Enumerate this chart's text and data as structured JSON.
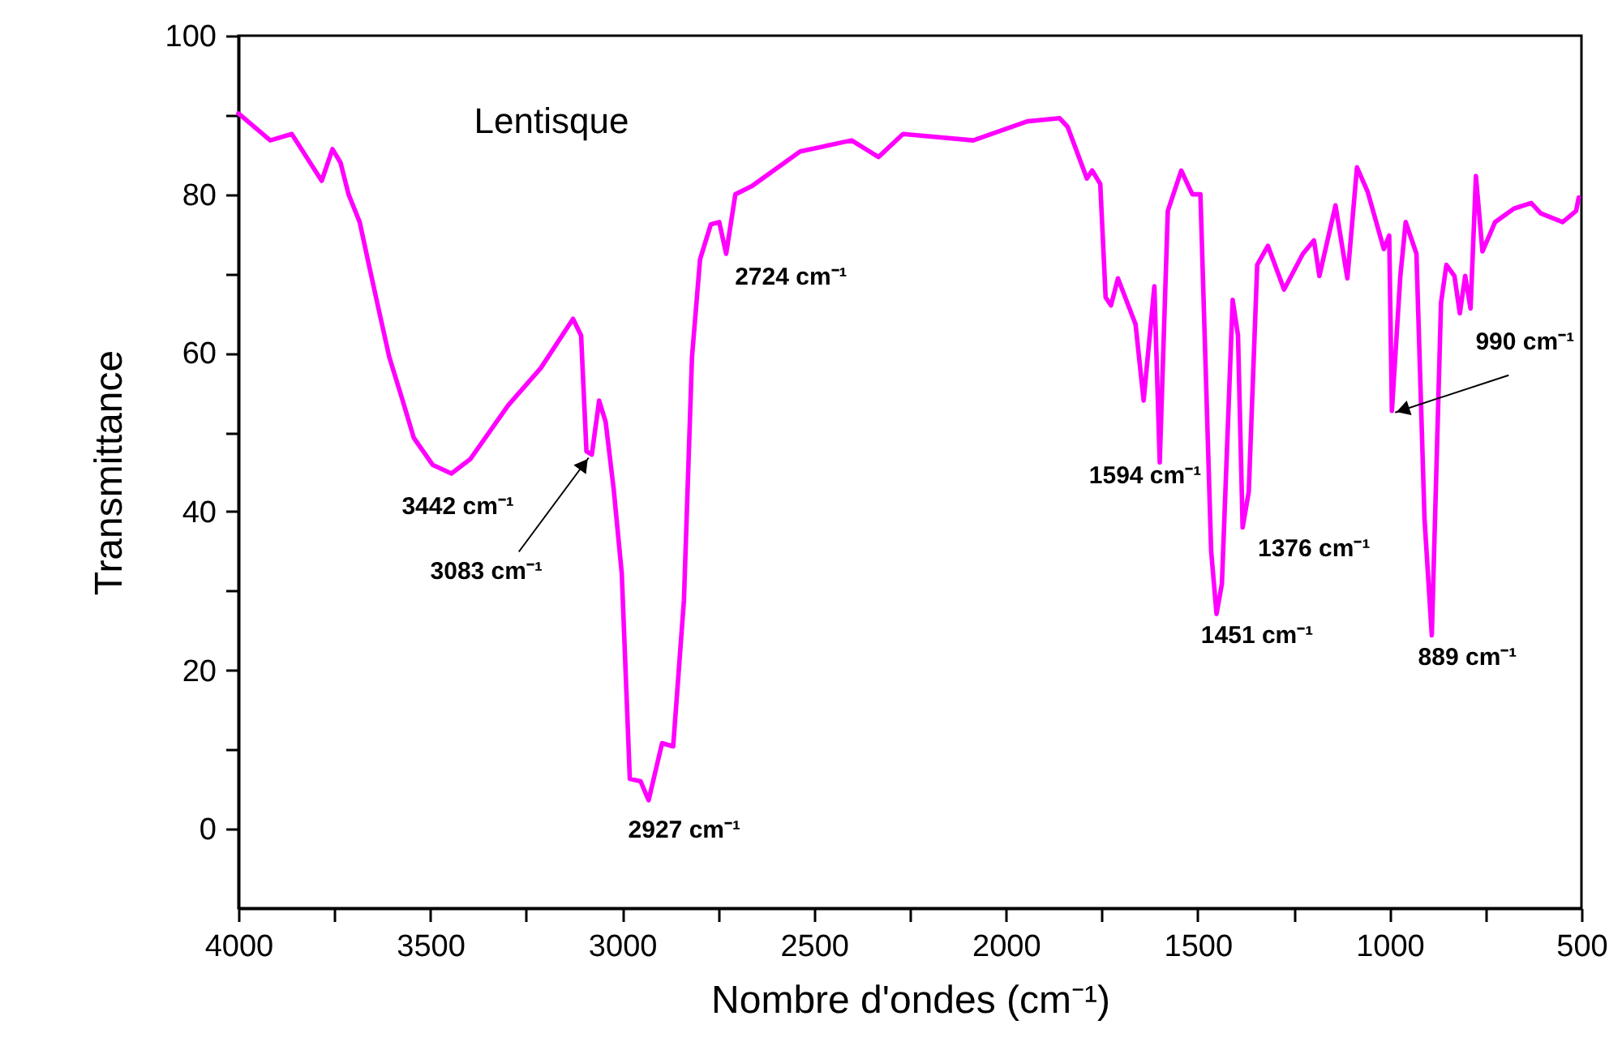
{
  "chart_data": {
    "type": "line",
    "xlabel": "Nombre d'ondes (cm⁻¹)",
    "ylabel": "Transmittance",
    "xlim": [
      4000,
      500
    ],
    "ylim": [
      -10,
      100
    ],
    "xticks": [
      4000,
      {
        "value": 3750,
        "label": null
      },
      3500,
      {
        "value": 3250,
        "label": null
      },
      3000,
      {
        "value": 2750,
        "label": null
      },
      2500,
      {
        "value": 2250,
        "label": null
      },
      2000,
      {
        "value": 1750,
        "label": null
      },
      1500,
      {
        "value": 1250,
        "label": null
      },
      1000,
      {
        "value": 750,
        "label": null
      },
      500
    ],
    "yticks": [
      0,
      {
        "value": 10,
        "label": null
      },
      20,
      {
        "value": 30,
        "label": null
      },
      40,
      {
        "value": 50,
        "label": null
      },
      60,
      {
        "value": 70,
        "label": null
      },
      80,
      {
        "value": 90,
        "label": null
      },
      100
    ],
    "grid": false,
    "x": [
      4000,
      3917,
      3861,
      3783,
      3755,
      3734,
      3713,
      3684,
      3660,
      3635,
      3607,
      3572,
      3543,
      3494,
      3445,
      3396,
      3297,
      3212,
      3128,
      3107,
      3093,
      3079,
      3060,
      3043,
      3022,
      3001,
      2980,
      2952,
      2931,
      2896,
      2867,
      2839,
      2818,
      2797,
      2769,
      2747,
      2729,
      2705,
      2663,
      2536,
      2402,
      2332,
      2268,
      2085,
      1944,
      1860,
      1839,
      1789,
      1775,
      1754,
      1740,
      1726,
      1708,
      1662,
      1641,
      1613,
      1599,
      1578,
      1543,
      1514,
      1493,
      1465,
      1451,
      1437,
      1409,
      1395,
      1383,
      1367,
      1345,
      1317,
      1275,
      1226,
      1197,
      1183,
      1141,
      1110,
      1085,
      1057,
      1015,
      1001,
      994,
      972,
      958,
      930,
      909,
      890,
      866,
      852,
      831,
      817,
      803,
      789,
      775,
      758,
      725,
      676,
      631,
      606,
      549,
      514,
      507
    ],
    "series": [
      {
        "color": "#ff00ff",
        "values": [
          90.2,
          86.8,
          87.6,
          81.7,
          85.7,
          84.0,
          80.0,
          76.5,
          71.1,
          65.6,
          59.5,
          54.0,
          49.3,
          45.9,
          44.8,
          46.6,
          53.4,
          58.1,
          64.3,
          62.2,
          47.6,
          47.2,
          54.0,
          51.3,
          42.8,
          32.2,
          6.3,
          6.0,
          3.6,
          10.8,
          10.4,
          28.8,
          59.5,
          71.8,
          76.2,
          76.5,
          72.5,
          80.0,
          81.0,
          85.4,
          86.8,
          84.7,
          87.6,
          86.8,
          89.2,
          89.6,
          88.5,
          82.0,
          83.0,
          81.3,
          67.0,
          66.0,
          69.4,
          63.6,
          54.0,
          68.4,
          46.2,
          77.9,
          83.0,
          80.0,
          80.0,
          35.0,
          27.1,
          30.9,
          66.7,
          62.2,
          38.0,
          42.5,
          71.1,
          73.5,
          68.0,
          72.5,
          74.2,
          69.7,
          78.6,
          69.4,
          83.4,
          80.3,
          73.1,
          74.8,
          52.7,
          69.7,
          76.5,
          72.5,
          39.1,
          24.4,
          66.3,
          71.1,
          69.7,
          65.0,
          69.7,
          65.6,
          82.3,
          72.8,
          76.5,
          78.2,
          78.9,
          77.6,
          76.5,
          77.9,
          79.6
        ]
      }
    ],
    "annotations": [
      "Lentisque",
      {
        "text": "3442 cm⁻¹",
        "x": 3445,
        "y": 44.8
      },
      {
        "text": "3083 cm⁻¹",
        "x": 3079,
        "y": 47.2
      },
      {
        "text": "2927 cm⁻¹",
        "x": 2931,
        "y": 3.6
      },
      {
        "text": "2724 cm⁻¹",
        "x": 2729,
        "y": 72.5
      },
      {
        "text": "1594 cm⁻¹",
        "x": 1599,
        "y": 46.2
      },
      {
        "text": "1451 cm⁻¹",
        "x": 1451,
        "y": 27.1
      },
      {
        "text": "1376 cm⁻¹",
        "x": 1383,
        "y": 38.0
      },
      {
        "text": "990 cm⁻¹",
        "x": 994,
        "y": 52.7
      },
      {
        "text": "889 cm⁻¹",
        "x": 890,
        "y": 24.4
      }
    ]
  }
}
